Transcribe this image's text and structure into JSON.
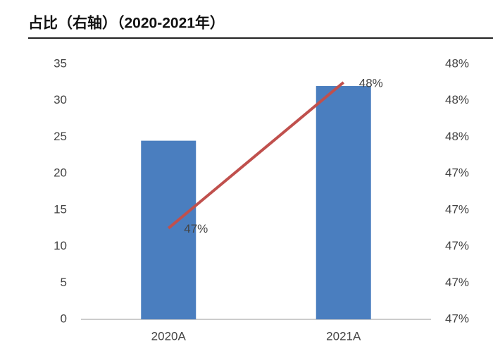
{
  "chart_data": {
    "type": "bar",
    "title": "占比（右轴）（2020-2021年）",
    "categories": [
      "2020A",
      "2021A"
    ],
    "series": [
      {
        "type": "bar",
        "color": "#4a7ebf",
        "values": [
          24.5,
          32
        ],
        "axis": "y"
      },
      {
        "type": "line",
        "color": "#c0504d",
        "values": [
          47.1,
          47.9
        ],
        "value_labels": [
          "47%",
          "48%"
        ],
        "axis": "y2"
      }
    ],
    "ylim": [
      0,
      35
    ],
    "yticks": [
      0,
      5,
      10,
      15,
      20,
      25,
      30,
      35
    ],
    "y2lim": [
      46.6,
      48.0
    ],
    "y2ticks": [
      {
        "value": 46.6,
        "label": "47%"
      },
      {
        "value": 46.8,
        "label": "47%"
      },
      {
        "value": 47.0,
        "label": "47%"
      },
      {
        "value": 47.2,
        "label": "47%"
      },
      {
        "value": 47.4,
        "label": "47%"
      },
      {
        "value": 47.6,
        "label": "48%"
      },
      {
        "value": 47.8,
        "label": "48%"
      },
      {
        "value": 48.0,
        "label": "48%"
      }
    ],
    "grid": false
  }
}
